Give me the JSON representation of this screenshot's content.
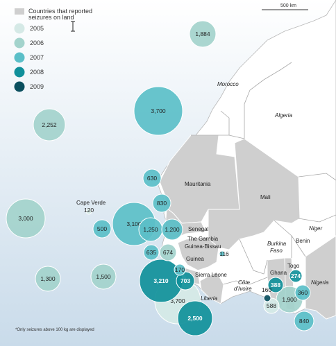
{
  "legend": {
    "land_label": "Countries that reported seizures on land",
    "land_label_line1": "Countries that reported",
    "land_label_line2": "seizures on land",
    "years": [
      {
        "label": "2005",
        "color": "#d5e9e6"
      },
      {
        "label": "2006",
        "color": "#a3d3cc"
      },
      {
        "label": "2007",
        "color": "#5bbfc8"
      },
      {
        "label": "2008",
        "color": "#10909a"
      },
      {
        "label": "2009",
        "color": "#0b4f5e"
      }
    ]
  },
  "scale": {
    "label": "500 km"
  },
  "footnote": "*Only seizures above 100 kg are displayed",
  "colors": {
    "sea_top": "#ffffff",
    "sea_bottom": "#c9dbea",
    "land": "#ffffff",
    "reported_land": "#cfcfcf",
    "border": "#a0a0a0"
  },
  "countries": {
    "morocco": "Morocco",
    "algeria": "Algeria",
    "mauritania": "Mauritania",
    "mali": "Mali",
    "niger": "Niger",
    "senegal": "Senegal",
    "gambia": "The Gambia",
    "guinea_bissau": "Guinea-Bissau",
    "guinea": "Guinea",
    "sierra_leone": "Sierra Leone",
    "liberia": "Liberia",
    "cote_line1": "Côte",
    "cote_line2": "d'Ivoire",
    "burkina_line1": "Burkina",
    "burkina_line2": "Faso",
    "ghana": "Ghana",
    "togo": "Togo",
    "benin": "Benin",
    "nigeria": "Nigeria",
    "cape_verde": "Cape Verde"
  },
  "seizures": [
    {
      "label": "1,884",
      "year": "2006"
    },
    {
      "label": "3,700",
      "year": "2007"
    },
    {
      "label": "2,252",
      "year": "2006"
    },
    {
      "label": "630",
      "year": "2007"
    },
    {
      "label": "830",
      "year": "2007"
    },
    {
      "label": "3,000",
      "year": "2006"
    },
    {
      "label": "120",
      "year": "2005"
    },
    {
      "label": "500",
      "year": "2007"
    },
    {
      "label": "3,100",
      "year": "2007"
    },
    {
      "label": "1,250",
      "year": "2007"
    },
    {
      "label": "1,200",
      "year": "2007"
    },
    {
      "label": "635",
      "year": "2007"
    },
    {
      "label": "674",
      "year": "2006"
    },
    {
      "label": "116",
      "year": "2007"
    },
    {
      "label": "1,300",
      "year": "2006"
    },
    {
      "label": "1,500",
      "year": "2006"
    },
    {
      "label": "170",
      "year": "2007"
    },
    {
      "label": "3,210",
      "year": "2008"
    },
    {
      "label": "703",
      "year": "2008"
    },
    {
      "label": "3,700",
      "year": "2005"
    },
    {
      "label": "2,500",
      "year": "2008"
    },
    {
      "label": "160",
      "year": "2009"
    },
    {
      "label": "588",
      "year": "2005"
    },
    {
      "label": "388",
      "year": "2008"
    },
    {
      "label": "274",
      "year": "2008"
    },
    {
      "label": "1,900",
      "year": "2006"
    },
    {
      "label": "360",
      "year": "2007"
    },
    {
      "label": "840",
      "year": "2007"
    }
  ]
}
